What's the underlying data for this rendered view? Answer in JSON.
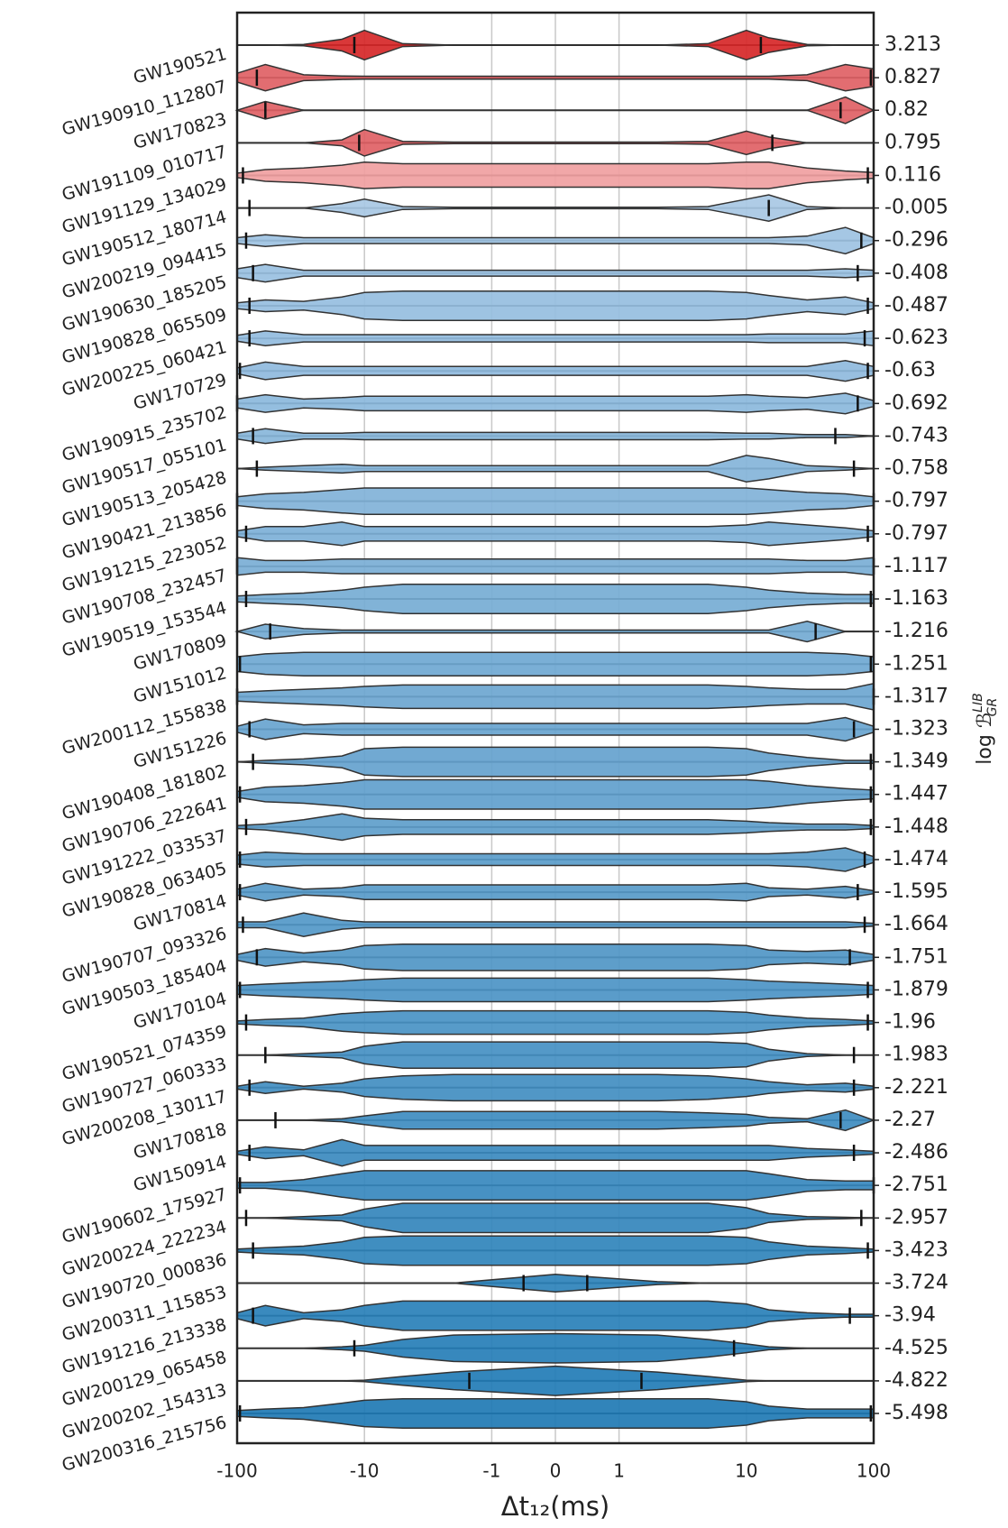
{
  "chart_data": {
    "type": "violin",
    "categories": [
      "GW190521",
      "GW190910_112807",
      "GW170823",
      "GW191109_010717",
      "GW191129_134029",
      "GW190512_180714",
      "GW200219_094415",
      "GW190630_185205",
      "GW190828_065509",
      "GW200225_060421",
      "GW170729",
      "GW190915_235702",
      "GW190517_055101",
      "GW190513_205428",
      "GW190421_213856",
      "GW191215_223052",
      "GW190708_232457",
      "GW190519_153544",
      "GW170809",
      "GW151012",
      "GW200112_155838",
      "GW151226",
      "GW190408_181802",
      "GW190706_222641",
      "GW191222_033537",
      "GW190828_063405",
      "GW170814",
      "GW190707_093326",
      "GW190503_185404",
      "GW170104",
      "GW190521_074359",
      "GW190727_060333",
      "GW200208_130117",
      "GW170818",
      "GW150914",
      "GW190602_175927",
      "GW200224_222234",
      "GW190720_000836",
      "GW200311_115853",
      "GW191216_213338",
      "GW200129_065458",
      "GW200202_154313",
      "GW200316_215756"
    ],
    "values": [
      3.213,
      0.827,
      0.82,
      0.795,
      0.116,
      -0.005,
      -0.296,
      -0.408,
      -0.487,
      -0.623,
      -0.63,
      -0.692,
      -0.743,
      -0.758,
      -0.797,
      -0.797,
      -1.117,
      -1.163,
      -1.216,
      -1.251,
      -1.317,
      -1.323,
      -1.349,
      -1.447,
      -1.448,
      -1.474,
      -1.595,
      -1.664,
      -1.751,
      -1.879,
      -1.96,
      -1.983,
      -2.221,
      -2.27,
      -2.486,
      -2.751,
      -2.957,
      -3.423,
      -3.724,
      -3.94,
      -4.525,
      -4.822,
      -5.498
    ],
    "x_grid": [
      -100,
      -60,
      -30,
      -15,
      -10,
      -5,
      -2,
      0,
      2,
      5,
      10,
      15,
      30,
      60,
      100
    ],
    "densities": [
      [
        0,
        0,
        0.05,
        0.4,
        1,
        0.1,
        0,
        0,
        0,
        0.1,
        1,
        0.5,
        0.05,
        0,
        0
      ],
      [
        0.3,
        0.9,
        0.2,
        0.12,
        0.1,
        0.1,
        0.1,
        0.1,
        0.1,
        0.1,
        0.1,
        0.1,
        0.2,
        0.9,
        0.6
      ],
      [
        0,
        0.6,
        0,
        0,
        0,
        0,
        0,
        0,
        0,
        0,
        0,
        0,
        0,
        0.9,
        0
      ],
      [
        0,
        0,
        0,
        0.2,
        0.9,
        0.1,
        0.05,
        0.05,
        0.05,
        0.1,
        0.8,
        0.4,
        0,
        0,
        0
      ],
      [
        0.15,
        0.4,
        0.5,
        0.7,
        0.9,
        0.8,
        0.8,
        0.8,
        0.8,
        0.8,
        0.9,
        0.9,
        0.5,
        0.3,
        0.2
      ],
      [
        0,
        0,
        0,
        0.3,
        0.6,
        0.1,
        0.05,
        0.05,
        0.05,
        0.1,
        0.6,
        0.9,
        0.1,
        0,
        0
      ],
      [
        0.2,
        0.4,
        0.2,
        0.2,
        0.2,
        0.2,
        0.2,
        0.2,
        0.2,
        0.2,
        0.2,
        0.2,
        0.3,
        0.9,
        0.2
      ],
      [
        0.3,
        0.6,
        0.2,
        0.2,
        0.2,
        0.2,
        0.2,
        0.2,
        0.2,
        0.2,
        0.2,
        0.2,
        0.2,
        0.3,
        0.2
      ],
      [
        0.2,
        0.4,
        0.3,
        0.6,
        0.9,
        1,
        1,
        1,
        1,
        1,
        0.9,
        0.7,
        0.4,
        0.6,
        0.2
      ],
      [
        0.2,
        0.5,
        0.25,
        0.25,
        0.25,
        0.25,
        0.25,
        0.25,
        0.25,
        0.25,
        0.25,
        0.3,
        0.3,
        0.3,
        0.5
      ],
      [
        0.2,
        0.6,
        0.3,
        0.3,
        0.3,
        0.3,
        0.3,
        0.3,
        0.3,
        0.3,
        0.3,
        0.3,
        0.3,
        0.7,
        0.3
      ],
      [
        0.3,
        0.6,
        0.3,
        0.4,
        0.5,
        0.5,
        0.5,
        0.5,
        0.5,
        0.5,
        0.6,
        0.5,
        0.4,
        0.7,
        0.2
      ],
      [
        0.2,
        0.5,
        0.2,
        0.2,
        0.25,
        0.25,
        0.25,
        0.25,
        0.25,
        0.25,
        0.2,
        0.2,
        0.1,
        0.1,
        0
      ],
      [
        0,
        0.1,
        0.2,
        0.3,
        0.2,
        0.2,
        0.2,
        0.2,
        0.2,
        0.2,
        0.9,
        0.7,
        0.2,
        0.1,
        0
      ],
      [
        0.3,
        0.5,
        0.6,
        0.8,
        0.9,
        0.9,
        0.9,
        0.9,
        0.9,
        0.9,
        0.9,
        0.8,
        0.6,
        0.5,
        0.3
      ],
      [
        0.2,
        0.5,
        0.5,
        0.8,
        0.5,
        0.5,
        0.5,
        0.5,
        0.5,
        0.5,
        0.6,
        0.8,
        0.6,
        0.4,
        0.2
      ],
      [
        0.6,
        0.4,
        0.4,
        0.5,
        0.5,
        0.5,
        0.5,
        0.5,
        0.5,
        0.5,
        0.5,
        0.5,
        0.4,
        0.4,
        0.6
      ],
      [
        0.2,
        0.3,
        0.4,
        0.6,
        0.8,
        1,
        1,
        1,
        1,
        1,
        0.8,
        0.6,
        0.4,
        0.3,
        0.3
      ],
      [
        0,
        0.5,
        0.2,
        0.1,
        0.1,
        0.1,
        0.1,
        0.1,
        0.1,
        0.1,
        0.1,
        0.1,
        0.7,
        0,
        0
      ],
      [
        0.5,
        0.7,
        0.8,
        0.8,
        0.8,
        0.8,
        0.8,
        0.8,
        0.8,
        0.8,
        0.8,
        0.8,
        0.8,
        0.7,
        0.5
      ],
      [
        0.3,
        0.4,
        0.5,
        0.6,
        0.7,
        0.8,
        0.8,
        0.8,
        0.8,
        0.8,
        0.7,
        0.6,
        0.5,
        0.5,
        0.9
      ],
      [
        0.2,
        0.7,
        0.3,
        0.4,
        0.4,
        0.4,
        0.4,
        0.4,
        0.4,
        0.4,
        0.4,
        0.4,
        0.4,
        0.8,
        0.2
      ],
      [
        0,
        0.1,
        0.2,
        0.4,
        0.9,
        1,
        1,
        1,
        1,
        1,
        0.9,
        0.6,
        0.3,
        0.1,
        0.1
      ],
      [
        0.2,
        0.5,
        0.6,
        0.8,
        1,
        1,
        1,
        1,
        1,
        1,
        1,
        0.9,
        0.6,
        0.4,
        0.3
      ],
      [
        0.1,
        0.2,
        0.5,
        0.9,
        0.6,
        0.5,
        0.5,
        0.5,
        0.5,
        0.5,
        0.4,
        0.3,
        0.2,
        0.2,
        0.1
      ],
      [
        0.3,
        0.5,
        0.4,
        0.4,
        0.4,
        0.4,
        0.4,
        0.4,
        0.4,
        0.4,
        0.4,
        0.4,
        0.5,
        0.8,
        0.2
      ],
      [
        0.2,
        0.6,
        0.2,
        0.3,
        0.5,
        0.5,
        0.5,
        0.5,
        0.5,
        0.5,
        0.6,
        0.3,
        0.2,
        0.4,
        0.1
      ],
      [
        0.2,
        0.2,
        0.8,
        0.3,
        0.2,
        0.2,
        0.2,
        0.2,
        0.2,
        0.2,
        0.2,
        0.2,
        0.2,
        0.2,
        0.1
      ],
      [
        0.2,
        0.6,
        0.3,
        0.5,
        0.8,
        0.9,
        0.9,
        0.9,
        0.9,
        0.9,
        0.8,
        0.5,
        0.4,
        0.5,
        0.2
      ],
      [
        0.3,
        0.4,
        0.5,
        0.6,
        0.7,
        0.8,
        0.8,
        0.8,
        0.8,
        0.8,
        0.7,
        0.6,
        0.5,
        0.4,
        0.3
      ],
      [
        0.1,
        0.2,
        0.3,
        0.6,
        0.7,
        0.8,
        0.8,
        0.8,
        0.8,
        0.8,
        0.7,
        0.5,
        0.3,
        0.2,
        0.1
      ],
      [
        0,
        0,
        0.1,
        0.2,
        0.6,
        0.9,
        0.9,
        0.9,
        0.9,
        0.9,
        0.8,
        0.4,
        0.1,
        0,
        0
      ],
      [
        0.1,
        0.4,
        0.1,
        0.3,
        0.6,
        0.8,
        0.9,
        0.9,
        0.9,
        0.8,
        0.6,
        0.4,
        0.2,
        0.3,
        0.1
      ],
      [
        0,
        0,
        0,
        0.1,
        0.3,
        0.6,
        0.6,
        0.6,
        0.6,
        0.5,
        0.4,
        0.2,
        0.1,
        0.7,
        0
      ],
      [
        0.1,
        0.4,
        0.2,
        0.9,
        0.5,
        0.5,
        0.5,
        0.5,
        0.5,
        0.5,
        0.5,
        0.5,
        0.3,
        0.2,
        0.1
      ],
      [
        0.2,
        0.2,
        0.4,
        0.8,
        1,
        1,
        1,
        1,
        1,
        1,
        1,
        0.8,
        0.4,
        0.3,
        0.3
      ],
      [
        0,
        0,
        0.1,
        0.2,
        0.6,
        1,
        1,
        1,
        1,
        1,
        0.7,
        0.3,
        0.1,
        0.05,
        0
      ],
      [
        0.1,
        0.2,
        0.3,
        0.6,
        0.9,
        1,
        1,
        1,
        1,
        1,
        0.9,
        0.6,
        0.3,
        0.2,
        0.1
      ],
      [
        0,
        0,
        0,
        0,
        0,
        0,
        0,
        0.6,
        0.1,
        0,
        0,
        0,
        0,
        0,
        0
      ],
      [
        0.2,
        0.7,
        0.2,
        0.4,
        0.7,
        1,
        1,
        1,
        1,
        1,
        0.8,
        0.4,
        0.2,
        0.1,
        0.1
      ],
      [
        0,
        0,
        0,
        0.1,
        0.2,
        0.6,
        0.9,
        1,
        0.9,
        0.6,
        0.3,
        0.1,
        0,
        0,
        0
      ],
      [
        0,
        0,
        0,
        0,
        0.05,
        0.3,
        0.6,
        1,
        0.6,
        0.3,
        0.05,
        0,
        0,
        0,
        0
      ],
      [
        0.2,
        0.3,
        0.4,
        0.7,
        0.9,
        1,
        1,
        1,
        1,
        1,
        0.8,
        0.5,
        0.3,
        0.3,
        0.3
      ]
    ],
    "intervals": [
      [
        -12,
        13
      ],
      [
        -70,
        95
      ],
      [
        -60,
        55
      ],
      [
        -11,
        16
      ],
      [
        -90,
        90
      ],
      [
        -80,
        15
      ],
      [
        -85,
        80
      ],
      [
        -75,
        75
      ],
      [
        -80,
        90
      ],
      [
        -80,
        85
      ],
      [
        -95,
        90
      ],
      [
        -100,
        75
      ],
      [
        -75,
        50
      ],
      [
        -70,
        70
      ],
      [
        -100,
        100
      ],
      [
        -85,
        90
      ],
      [
        -100,
        100
      ],
      [
        -85,
        95
      ],
      [
        -55,
        35
      ],
      [
        -95,
        95
      ],
      [
        -100,
        100
      ],
      [
        -80,
        70
      ],
      [
        -75,
        95
      ],
      [
        -95,
        95
      ],
      [
        -85,
        95
      ],
      [
        -95,
        85
      ],
      [
        -95,
        75
      ],
      [
        -90,
        85
      ],
      [
        -70,
        65
      ],
      [
        -95,
        90
      ],
      [
        -85,
        90
      ],
      [
        -60,
        70
      ],
      [
        -80,
        70
      ],
      [
        -50,
        55
      ],
      [
        -80,
        70
      ],
      [
        -95,
        100
      ],
      [
        -85,
        80
      ],
      [
        -75,
        90
      ],
      [
        -0.5,
        0.5
      ],
      [
        -75,
        65
      ],
      [
        -12,
        8
      ],
      [
        -1.5,
        1.5
      ],
      [
        -95,
        95
      ]
    ],
    "colors": [
      "#d62728",
      "#e06165",
      "#e06165",
      "#e06165",
      "#f0a0a1",
      "#a8c8e4",
      "#9dc2e2",
      "#99c0e1",
      "#96bedf",
      "#92bcde",
      "#8fbadd",
      "#8bb8dc",
      "#88b6da",
      "#84b4d9",
      "#81b2d8",
      "#7db0d7",
      "#7aaed5",
      "#76acd4",
      "#73aad3",
      "#6fa8d2",
      "#6ca6d0",
      "#68a4cf",
      "#65a2ce",
      "#61a0cd",
      "#5e9ecb",
      "#5a9cca",
      "#579ac9",
      "#5398c8",
      "#5096c6",
      "#4c94c5",
      "#4992c4",
      "#4590c3",
      "#428ec1",
      "#3e8cc0",
      "#3b8abf",
      "#3788be",
      "#3486bc",
      "#3084bb",
      "#2d82ba",
      "#2980b9",
      "#267eb7",
      "#227cb6",
      "#1f7ab4"
    ],
    "xscale": "symlog",
    "xlim": [
      -100,
      100
    ],
    "xticks": [
      -100,
      -10,
      -1,
      0,
      1,
      10,
      100
    ],
    "grid": true,
    "xlabel": "Δt₁₂(ms)",
    "y2label": {
      "text": "log ℬ",
      "sup": "LIB",
      "sub": "GR"
    }
  }
}
